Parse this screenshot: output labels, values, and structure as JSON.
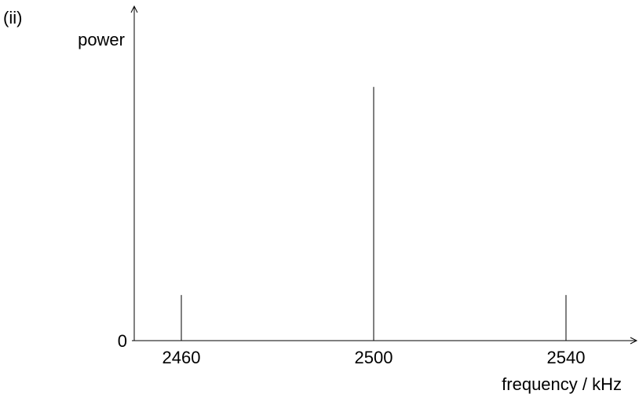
{
  "part_label": "(ii)",
  "chart_data": {
    "type": "bar",
    "title": "",
    "xlabel": "frequency / kHz",
    "ylabel": "power",
    "y_origin_label": "0",
    "x_ticks": [
      2460,
      2500,
      2540
    ],
    "categories": [
      "2460",
      "2500",
      "2540"
    ],
    "x": [
      2460,
      2500,
      2540
    ],
    "values": [
      0.18,
      1.0,
      0.18
    ],
    "y_range": [
      0,
      1.25
    ],
    "bar_style": "vertical lines",
    "grid": false,
    "legend": "none"
  }
}
